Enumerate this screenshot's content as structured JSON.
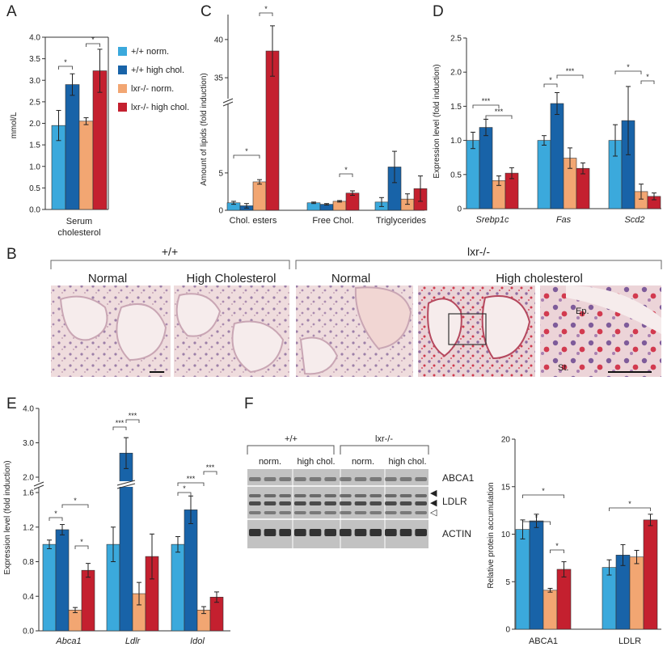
{
  "colors": {
    "wt_normal": "#3ba9dc",
    "wt_high": "#1863a8",
    "lxr_normal": "#f2a672",
    "lxr_high": "#c4202f",
    "tissue_pink": "#ecd0d3",
    "blot_bg": "#bdbdbd"
  },
  "panels": {
    "A": "A",
    "B": "B",
    "C": "C",
    "D": "D",
    "E": "E",
    "F": "F"
  },
  "legend": [
    {
      "label": "+/+ norm.",
      "color": "#3ba9dc"
    },
    {
      "label": "+/+ high chol.",
      "color": "#1863a8"
    },
    {
      "label": "lxr-/- norm.",
      "color": "#f2a672"
    },
    {
      "label": "lxr-/- high chol.",
      "color": "#c4202f"
    }
  ],
  "chart_data": [
    {
      "panel": "A",
      "type": "bar",
      "ylabel": "mmol/L",
      "ylim": [
        0,
        4.0
      ],
      "yticks": [
        "0.0",
        "0.5",
        "1.0",
        "1.5",
        "2.0",
        "2.5",
        "3.0",
        "3.5",
        "4.0"
      ],
      "categories": [
        "Serum cholesterol"
      ],
      "category_lines": [
        "Serum",
        "cholesterol"
      ],
      "series": [
        {
          "name": "+/+ norm.",
          "values": [
            1.95
          ],
          "errors": [
            0.35
          ]
        },
        {
          "name": "+/+ high chol.",
          "values": [
            2.9
          ],
          "errors": [
            0.25
          ]
        },
        {
          "name": "lxr-/- norm.",
          "values": [
            2.05
          ],
          "errors": [
            0.08
          ]
        },
        {
          "name": "lxr-/- high chol.",
          "values": [
            3.22
          ],
          "errors": [
            0.5
          ]
        }
      ],
      "significance": [
        "*",
        "*"
      ]
    },
    {
      "panel": "C",
      "type": "bar",
      "ylabel": "Amount of lipids  (fold induction)",
      "broken_axis": true,
      "yticks": [
        "0",
        "5",
        "35",
        "40"
      ],
      "categories": [
        "Chol. esters",
        "Free Chol.",
        "Triglycerides"
      ],
      "series": [
        {
          "name": "+/+ norm.",
          "values": [
            1.0,
            1.0,
            1.1
          ],
          "errors": [
            0.2,
            0.1,
            0.6
          ]
        },
        {
          "name": "+/+ high chol.",
          "values": [
            0.6,
            0.8,
            5.8
          ],
          "errors": [
            0.3,
            0.1,
            2.1
          ]
        },
        {
          "name": "lxr-/- norm.",
          "values": [
            3.8,
            1.2,
            1.5
          ],
          "errors": [
            0.3,
            0.1,
            0.7
          ]
        },
        {
          "name": "lxr-/- high chol.",
          "values": [
            38.5,
            2.3,
            2.9
          ],
          "errors": [
            3.3,
            0.3,
            1.7
          ]
        }
      ],
      "significance": [
        "*",
        "*",
        "*"
      ]
    },
    {
      "panel": "D",
      "type": "bar",
      "ylabel": "Expression level (fold induction)",
      "ylim": [
        0,
        2.5
      ],
      "yticks": [
        "0",
        "0.5",
        "1.0",
        "1.5",
        "2.0",
        "2.5"
      ],
      "categories": [
        "Srebp1c",
        "Fas",
        "Scd2"
      ],
      "series": [
        {
          "name": "+/+ norm.",
          "values": [
            1.0,
            1.0,
            1.0
          ],
          "errors": [
            0.12,
            0.07,
            0.23
          ]
        },
        {
          "name": "+/+ high chol.",
          "values": [
            1.19,
            1.54,
            1.29
          ],
          "errors": [
            0.12,
            0.16,
            0.5
          ]
        },
        {
          "name": "lxr-/- norm.",
          "values": [
            0.41,
            0.74,
            0.25
          ],
          "errors": [
            0.07,
            0.15,
            0.11
          ]
        },
        {
          "name": "lxr-/- high chol.",
          "values": [
            0.52,
            0.59,
            0.18
          ],
          "errors": [
            0.08,
            0.08,
            0.05
          ]
        }
      ],
      "significance": [
        "***",
        "***",
        "*",
        "***",
        "*",
        "*"
      ]
    },
    {
      "panel": "E",
      "type": "bar",
      "ylabel": "Expression level (fold induction)",
      "broken_axis": true,
      "yticks": [
        "0.0",
        "0.4",
        "0.8",
        "1.2",
        "1.6",
        "2.0",
        "3.0",
        "4.0"
      ],
      "categories": [
        "Abca1",
        "Ldlr",
        "Idol"
      ],
      "series": [
        {
          "name": "+/+ norm.",
          "values": [
            1.0,
            1.0,
            1.0
          ],
          "errors": [
            0.05,
            0.2,
            0.09
          ]
        },
        {
          "name": "+/+ high chol.",
          "values": [
            1.17,
            2.7,
            1.4
          ],
          "errors": [
            0.06,
            0.45,
            0.16
          ]
        },
        {
          "name": "lxr-/- norm.",
          "values": [
            0.24,
            0.43,
            0.24
          ],
          "errors": [
            0.03,
            0.13,
            0.04
          ]
        },
        {
          "name": "lxr-/- high chol.",
          "values": [
            0.7,
            0.86,
            0.39
          ],
          "errors": [
            0.08,
            0.26,
            0.06
          ]
        }
      ],
      "significance": [
        "*",
        "*",
        "*",
        "***",
        "***",
        "*",
        "***",
        "***"
      ]
    },
    {
      "panel": "F",
      "type": "bar",
      "ylabel": "Relative protein accumulation",
      "ylim": [
        0,
        20
      ],
      "yticks": [
        "0",
        "5",
        "10",
        "15",
        "20"
      ],
      "categories": [
        "ABCA1",
        "LDLR"
      ],
      "series": [
        {
          "name": "+/+ norm.",
          "values": [
            10.5,
            6.5
          ],
          "errors": [
            1.0,
            0.8
          ]
        },
        {
          "name": "+/+ high chol.",
          "values": [
            11.4,
            7.8
          ],
          "errors": [
            0.7,
            1.1
          ]
        },
        {
          "name": "lxr-/- norm.",
          "values": [
            4.1,
            7.6
          ],
          "errors": [
            0.2,
            0.7
          ]
        },
        {
          "name": "lxr-/- high chol.",
          "values": [
            6.3,
            11.5
          ],
          "errors": [
            0.8,
            0.6
          ]
        }
      ],
      "significance": [
        "*",
        "*",
        "*",
        "*"
      ]
    }
  ],
  "micrographs": {
    "group_wt": "+/+",
    "group_lxr": "lxr-/-",
    "labels": [
      "Normal",
      "High Cholesterol",
      "Normal",
      "High cholesterol"
    ],
    "ep": "Ep.",
    "st": "St."
  },
  "blot": {
    "group_wt": "+/+",
    "group_lxr": "lxr-/-",
    "sub": [
      "norm.",
      "high chol.",
      "norm.",
      "high chol."
    ],
    "bands": [
      "ABCA1",
      "LDLR",
      "ACTIN"
    ],
    "arrows": [
      "◀",
      "◀",
      "◁"
    ]
  }
}
